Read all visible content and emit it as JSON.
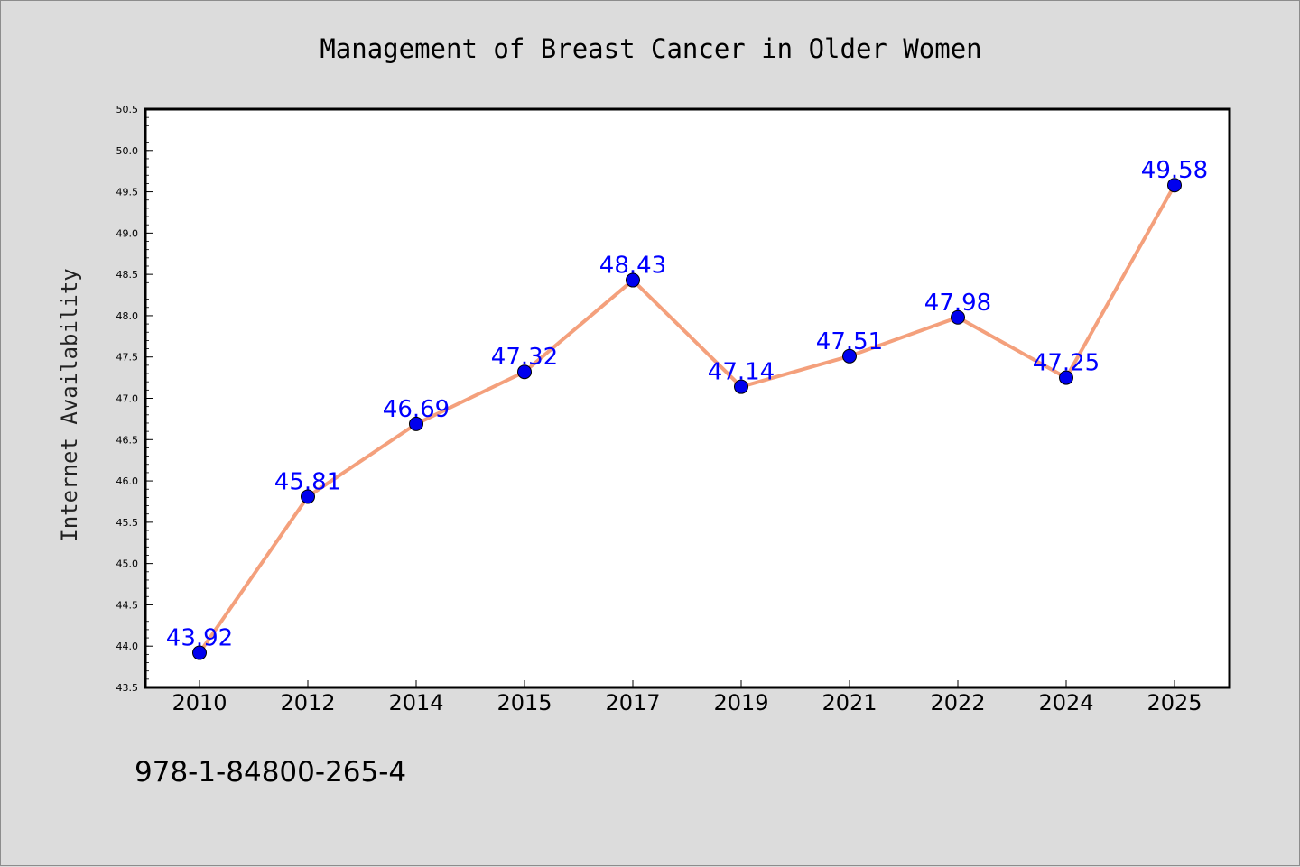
{
  "chart_data": {
    "type": "line",
    "title": "Management of Breast Cancer in Older Women",
    "xlabel": "",
    "ylabel": "Internet Availability",
    "categories": [
      "2010",
      "2012",
      "2014",
      "2015",
      "2017",
      "2019",
      "2021",
      "2022",
      "2024",
      "2025"
    ],
    "series": [
      {
        "values": [
          43.92,
          45.81,
          46.69,
          47.32,
          48.43,
          47.14,
          47.51,
          47.98,
          47.25,
          49.58
        ],
        "data_labels": [
          "43.92",
          "45.81",
          "46.69",
          "47.32",
          "48.43",
          "47.14",
          "47.51",
          "47.98",
          "47.25",
          "49.58"
        ]
      }
    ],
    "ylim": [
      43.5,
      50.5
    ],
    "yticks": [
      "43.5",
      "44.0",
      "44.5",
      "45.0",
      "45.5",
      "46.0",
      "46.5",
      "47.0",
      "47.5",
      "48.0",
      "48.5",
      "49.0",
      "49.5",
      "50.0",
      "50.5"
    ],
    "grid": false,
    "legend": "none",
    "colors": {
      "line": "#f4a07c",
      "marker": "#0000ee",
      "data_label": "#0000ff",
      "background": "#dcdcdc",
      "plot_background": "#ffffff"
    }
  },
  "footer_text": "978-1-84800-265-4"
}
